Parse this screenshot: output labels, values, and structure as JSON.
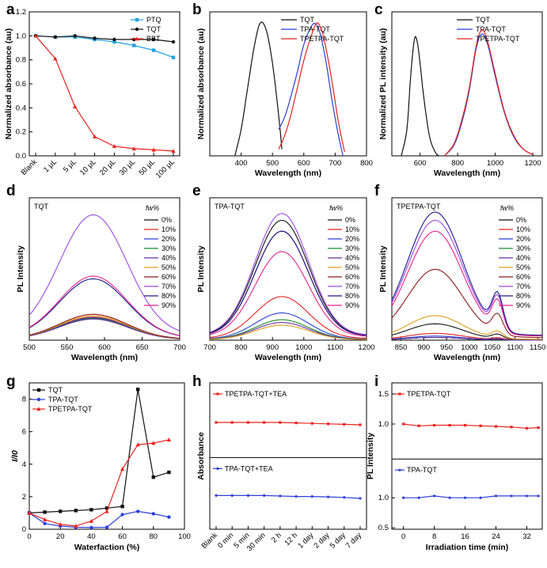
{
  "chart_data": [
    {
      "panel": "a",
      "type": "line",
      "categories": [
        "Blank",
        "1 μL",
        "5 μL",
        "10 μL",
        "20 μL",
        "30 μL",
        "50 μL",
        "100 μL"
      ],
      "series": [
        {
          "name": "PTQ",
          "color": "#1fa0e0",
          "marker": "square",
          "values": [
            1.0,
            0.99,
            0.99,
            0.97,
            0.95,
            0.92,
            0.88,
            0.82
          ]
        },
        {
          "name": "TQT",
          "color": "#111111",
          "marker": "circle",
          "values": [
            1.0,
            0.99,
            1.0,
            0.98,
            0.97,
            0.97,
            0.97,
            0.95
          ]
        },
        {
          "name": "BBT",
          "color": "#e8231f",
          "marker": "triangle",
          "values": [
            1.0,
            0.81,
            0.41,
            0.16,
            0.08,
            0.06,
            0.05,
            0.04
          ]
        }
      ],
      "xlabel": "",
      "ylabel": "Normalized absorbance (au)",
      "ylim": [
        0,
        1.2
      ],
      "yticks": [
        "0.0",
        "0.2",
        "0.4",
        "0.6",
        "0.8",
        "1.0",
        "1.2"
      ],
      "legend": "top-right"
    },
    {
      "panel": "b",
      "type": "line",
      "xlim": [
        300,
        800
      ],
      "xticks": [
        400,
        500,
        600,
        700,
        800
      ],
      "xlabel": "Wavelength (nm)",
      "ylabel": "Normalized absorbance (au)",
      "series": [
        {
          "name": "TQT",
          "color": "#111111",
          "points": [
            [
              380,
              0
            ],
            [
              400,
              0.2
            ],
            [
              420,
              0.5
            ],
            [
              440,
              0.8
            ],
            [
              460,
              1.0
            ],
            [
              480,
              0.95
            ],
            [
              500,
              0.7
            ],
            [
              520,
              0.3
            ],
            [
              530,
              0.05
            ]
          ]
        },
        {
          "name": "TPA-TQT",
          "color": "#2b3fd6",
          "points": [
            [
              520,
              0.2
            ],
            [
              540,
              0.3
            ],
            [
              560,
              0.46
            ],
            [
              580,
              0.64
            ],
            [
              600,
              0.84
            ],
            [
              620,
              0.96
            ],
            [
              635,
              1.0
            ],
            [
              650,
              0.94
            ],
            [
              670,
              0.72
            ],
            [
              690,
              0.42
            ],
            [
              710,
              0.16
            ],
            [
              725,
              0
            ]
          ]
        },
        {
          "name": "TPETPA-TQT",
          "color": "#e8231f",
          "points": [
            [
              520,
              0.05
            ],
            [
              540,
              0.16
            ],
            [
              560,
              0.32
            ],
            [
              580,
              0.52
            ],
            [
              600,
              0.72
            ],
            [
              620,
              0.88
            ],
            [
              640,
              1.0
            ],
            [
              655,
              0.96
            ],
            [
              670,
              0.82
            ],
            [
              690,
              0.56
            ],
            [
              710,
              0.26
            ],
            [
              730,
              0.03
            ]
          ]
        }
      ],
      "legend": "top-right"
    },
    {
      "panel": "c",
      "type": "line",
      "xlim": [
        450,
        1250
      ],
      "xticks": [
        600,
        800,
        1000,
        1200
      ],
      "xlabel": "Wavelength (nm)",
      "ylabel": "Normalized PL intensity (au)",
      "series": [
        {
          "name": "TQT",
          "color": "#111111",
          "points": [
            [
              500,
              0
            ],
            [
              530,
              0.2
            ],
            [
              550,
              0.6
            ],
            [
              570,
              0.88
            ],
            [
              585,
              0.86
            ],
            [
              600,
              0.7
            ],
            [
              620,
              0.44
            ],
            [
              650,
              0.15
            ],
            [
              680,
              0.03
            ],
            [
              700,
              0
            ]
          ]
        },
        {
          "name": "TPA-TQT",
          "color": "#2b3fd6",
          "points": [
            [
              730,
              0
            ],
            [
              780,
              0.08
            ],
            [
              820,
              0.24
            ],
            [
              860,
              0.48
            ],
            [
              900,
              0.82
            ],
            [
              930,
              0.92
            ],
            [
              960,
              0.84
            ],
            [
              1000,
              0.6
            ],
            [
              1050,
              0.32
            ],
            [
              1100,
              0.14
            ],
            [
              1150,
              0.05
            ],
            [
              1200,
              0.01
            ]
          ]
        },
        {
          "name": "TPETPA-TQT",
          "color": "#e8231f",
          "points": [
            [
              730,
              0
            ],
            [
              780,
              0.09
            ],
            [
              820,
              0.26
            ],
            [
              860,
              0.5
            ],
            [
              900,
              0.84
            ],
            [
              930,
              0.95
            ],
            [
              960,
              0.86
            ],
            [
              1000,
              0.62
            ],
            [
              1050,
              0.33
            ],
            [
              1100,
              0.15
            ],
            [
              1150,
              0.05
            ],
            [
              1200,
              0.01
            ]
          ]
        }
      ],
      "legend": "top-right"
    },
    {
      "panel": "d",
      "type": "line",
      "annotation": "TQT",
      "xlim": [
        500,
        700
      ],
      "xticks": [
        500,
        550,
        600,
        650,
        700
      ],
      "xlabel": "Wavelength (nm)",
      "ylabel": "PL Intensity",
      "legend_title": "fw%",
      "series_meta": {
        "center": 585,
        "width": 45
      },
      "series": [
        {
          "name": "0%",
          "color": "#111111",
          "peak": 0.16
        },
        {
          "name": "10%",
          "color": "#e8231f",
          "peak": 0.17
        },
        {
          "name": "20%",
          "color": "#2b3fd6",
          "peak": 0.165
        },
        {
          "name": "30%",
          "color": "#1a8a2a",
          "peak": 0.16
        },
        {
          "name": "40%",
          "color": "#6b2fa0",
          "peak": 0.155
        },
        {
          "name": "50%",
          "color": "#e0a020",
          "peak": 0.18
        },
        {
          "name": "60%",
          "color": "#8b1a1a",
          "peak": 0.19
        },
        {
          "name": "70%",
          "color": "#9b4ae0",
          "peak": 0.92
        },
        {
          "name": "80%",
          "color": "#1a1a8b",
          "peak": 0.45
        },
        {
          "name": "90%",
          "color": "#e8238a",
          "peak": 0.47
        }
      ]
    },
    {
      "panel": "e",
      "type": "line",
      "annotation": "TPA-TQT",
      "xlim": [
        700,
        1200
      ],
      "xticks": [
        700,
        800,
        900,
        1000,
        1100,
        1200
      ],
      "xlabel": "Wavelength (nm)",
      "ylabel": "PL Intensity",
      "legend_title": "fw%",
      "series_meta": {
        "center": 930,
        "width": 85
      },
      "series": [
        {
          "name": "0%",
          "color": "#111111",
          "peak": 0.88
        },
        {
          "name": "10%",
          "color": "#e8231f",
          "peak": 0.32
        },
        {
          "name": "20%",
          "color": "#2b3fd6",
          "peak": 0.2
        },
        {
          "name": "30%",
          "color": "#1a8a2a",
          "peak": 0.15
        },
        {
          "name": "40%",
          "color": "#6b2fa0",
          "peak": 0.13
        },
        {
          "name": "50%",
          "color": "#e0a020",
          "peak": 0.11
        },
        {
          "name": "60%",
          "color": "#8b1a1a",
          "peak": 0.8
        },
        {
          "name": "70%",
          "color": "#9b4ae0",
          "peak": 0.93
        },
        {
          "name": "80%",
          "color": "#1a1a8b",
          "peak": 0.8
        },
        {
          "name": "90%",
          "color": "#e8238a",
          "peak": 0.65
        }
      ]
    },
    {
      "panel": "f",
      "type": "line",
      "annotation": "TPETPA-TQT",
      "xlim": [
        830,
        1160
      ],
      "xticks": [
        850,
        900,
        950,
        1000,
        1050,
        1100,
        1150
      ],
      "xlabel": "Wavelength (nm)",
      "ylabel": "PL Intensity",
      "legend_title": "fw%",
      "series_meta": {
        "center": 925,
        "width": 60
      },
      "series": [
        {
          "name": "0%",
          "color": "#111111",
          "peak": 0.12
        },
        {
          "name": "10%",
          "color": "#e8231f",
          "peak": 0.05
        },
        {
          "name": "20%",
          "color": "#2b3fd6",
          "peak": 0.03
        },
        {
          "name": "30%",
          "color": "#1a8a2a",
          "peak": 0.02
        },
        {
          "name": "40%",
          "color": "#6b2fa0",
          "peak": 0.02
        },
        {
          "name": "50%",
          "color": "#e0a020",
          "peak": 0.18
        },
        {
          "name": "60%",
          "color": "#8b1a1a",
          "peak": 0.52
        },
        {
          "name": "70%",
          "color": "#9b4ae0",
          "peak": 0.88
        },
        {
          "name": "80%",
          "color": "#1a1a8b",
          "peak": 0.94
        },
        {
          "name": "90%",
          "color": "#e8238a",
          "peak": 0.8
        }
      ]
    },
    {
      "panel": "g",
      "type": "line",
      "xlim": [
        0,
        100
      ],
      "xticks": [
        0,
        20,
        40,
        60,
        80,
        100
      ],
      "ylim": [
        0,
        9
      ],
      "yticks": [
        0,
        2,
        4,
        6,
        8
      ],
      "xlabel": "Waterfaction (%)",
      "ylabel": "I/I0",
      "x": [
        0,
        10,
        20,
        30,
        40,
        50,
        60,
        70,
        80,
        90
      ],
      "series": [
        {
          "name": "TQT",
          "color": "#111111",
          "marker": "square",
          "values": [
            1.0,
            1.05,
            1.1,
            1.15,
            1.2,
            1.3,
            1.4,
            8.6,
            3.2,
            3.5
          ]
        },
        {
          "name": "TPA-TQT",
          "color": "#2b3fd6",
          "marker": "circle",
          "values": [
            1.0,
            0.35,
            0.2,
            0.12,
            0.1,
            0.12,
            0.9,
            1.1,
            0.95,
            0.75
          ]
        },
        {
          "name": "TPETPA-TQT",
          "color": "#e8231f",
          "marker": "triangle",
          "values": [
            1.0,
            0.6,
            0.3,
            0.2,
            0.5,
            1.1,
            3.7,
            5.2,
            5.3,
            5.5
          ]
        }
      ],
      "legend": "top-left"
    },
    {
      "panel": "h",
      "type": "line",
      "categories": [
        "Blank",
        "0 min",
        "5 min",
        "30 min",
        "2 h",
        "12 h",
        "1 day",
        "2 day",
        "5 day",
        "7 day"
      ],
      "xlabel": "",
      "ylabel": "Absorbance",
      "series": [
        {
          "name": "TPETPA-TQT+TEA",
          "color": "#e8231f",
          "marker": "square",
          "values": [
            1.0,
            1.0,
            1.0,
            1.0,
            1.0,
            0.995,
            0.99,
            0.985,
            0.98,
            0.975
          ]
        },
        {
          "name": "TPA-TQT+TEA",
          "color": "#2b3fd6",
          "marker": "circle",
          "values": [
            1.0,
            1.0,
            1.0,
            1.0,
            0.995,
            0.99,
            0.99,
            0.985,
            0.98,
            0.97
          ]
        }
      ]
    },
    {
      "panel": "i",
      "type": "line",
      "xlim": [
        -3,
        36
      ],
      "xticks": [
        0,
        8,
        16,
        24,
        32
      ],
      "xlabel": "Irradiation time (min)",
      "ylabel": "PL Intensity",
      "yticks_top": [
        "1.0",
        "1.5"
      ],
      "yticks_bottom": [
        "0.5",
        "1.0"
      ],
      "x": [
        0,
        4,
        8,
        12,
        16,
        20,
        24,
        28,
        32,
        35
      ],
      "series": [
        {
          "name": "TPETPA-TQT",
          "color": "#e8231f",
          "marker": "square",
          "values": [
            1.0,
            0.97,
            0.98,
            0.98,
            0.98,
            0.97,
            0.96,
            0.95,
            0.93,
            0.94
          ]
        },
        {
          "name": "TPA-TQT",
          "color": "#2b3fd6",
          "marker": "circle",
          "values": [
            1.0,
            1.0,
            1.03,
            1.0,
            1.0,
            1.0,
            1.03,
            1.03,
            1.03,
            1.03
          ]
        }
      ]
    }
  ]
}
